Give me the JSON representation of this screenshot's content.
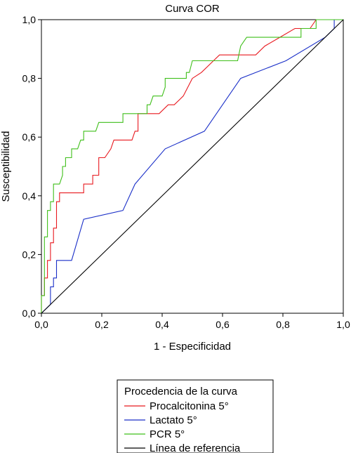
{
  "chart_data": {
    "type": "line",
    "title": "Curva COR",
    "xlabel": "1 - Especificidad",
    "ylabel": "Susceptibilidad",
    "xlim": [
      0,
      1
    ],
    "ylim": [
      0,
      1
    ],
    "x_ticks": [
      "0,0",
      "0,2",
      "0,4",
      "0,6",
      "0,8",
      "1,0"
    ],
    "y_ticks": [
      "0,0",
      "0,2",
      "0,4",
      "0,6",
      "0,8",
      "1,0"
    ],
    "legend": {
      "title": "Procedencia de la curva",
      "placement": "bottom-center"
    },
    "series": [
      {
        "name": "Procalcitonina 5°",
        "color": "#e8191f",
        "points": [
          [
            0,
            0
          ],
          [
            0,
            0.06
          ],
          [
            0.01,
            0.06
          ],
          [
            0.01,
            0.12
          ],
          [
            0.02,
            0.12
          ],
          [
            0.02,
            0.18
          ],
          [
            0.03,
            0.18
          ],
          [
            0.03,
            0.24
          ],
          [
            0.04,
            0.24
          ],
          [
            0.04,
            0.29
          ],
          [
            0.05,
            0.29
          ],
          [
            0.05,
            0.38
          ],
          [
            0.06,
            0.38
          ],
          [
            0.06,
            0.41
          ],
          [
            0.14,
            0.41
          ],
          [
            0.14,
            0.44
          ],
          [
            0.17,
            0.44
          ],
          [
            0.17,
            0.47
          ],
          [
            0.19,
            0.47
          ],
          [
            0.19,
            0.53
          ],
          [
            0.21,
            0.53
          ],
          [
            0.23,
            0.56
          ],
          [
            0.24,
            0.59
          ],
          [
            0.3,
            0.59
          ],
          [
            0.31,
            0.62
          ],
          [
            0.32,
            0.62
          ],
          [
            0.32,
            0.68
          ],
          [
            0.39,
            0.68
          ],
          [
            0.42,
            0.71
          ],
          [
            0.44,
            0.71
          ],
          [
            0.47,
            0.74
          ],
          [
            0.5,
            0.8
          ],
          [
            0.53,
            0.82
          ],
          [
            0.57,
            0.86
          ],
          [
            0.59,
            0.88
          ],
          [
            0.71,
            0.88
          ],
          [
            0.74,
            0.91
          ],
          [
            0.79,
            0.94
          ],
          [
            0.84,
            0.97
          ],
          [
            0.89,
            0.97
          ],
          [
            0.91,
            1.0
          ],
          [
            1.0,
            1.0
          ]
        ]
      },
      {
        "name": "Lactato 5°",
        "color": "#1a2fc8",
        "points": [
          [
            0,
            0
          ],
          [
            0.03,
            0.03
          ],
          [
            0.03,
            0.09
          ],
          [
            0.04,
            0.09
          ],
          [
            0.04,
            0.12
          ],
          [
            0.05,
            0.12
          ],
          [
            0.05,
            0.18
          ],
          [
            0.1,
            0.18
          ],
          [
            0.14,
            0.32
          ],
          [
            0.27,
            0.35
          ],
          [
            0.31,
            0.44
          ],
          [
            0.41,
            0.56
          ],
          [
            0.54,
            0.62
          ],
          [
            0.66,
            0.8
          ],
          [
            0.81,
            0.86
          ],
          [
            0.94,
            0.94
          ],
          [
            0.97,
            0.97
          ],
          [
            0.97,
            1.0
          ],
          [
            1.0,
            1.0
          ]
        ]
      },
      {
        "name": "PCR 5°",
        "color": "#3fbf1a",
        "points": [
          [
            0,
            0
          ],
          [
            0,
            0.06
          ],
          [
            0.01,
            0.06
          ],
          [
            0.01,
            0.26
          ],
          [
            0.02,
            0.26
          ],
          [
            0.02,
            0.35
          ],
          [
            0.03,
            0.35
          ],
          [
            0.03,
            0.38
          ],
          [
            0.04,
            0.38
          ],
          [
            0.04,
            0.44
          ],
          [
            0.06,
            0.44
          ],
          [
            0.07,
            0.47
          ],
          [
            0.07,
            0.5
          ],
          [
            0.08,
            0.5
          ],
          [
            0.08,
            0.53
          ],
          [
            0.1,
            0.53
          ],
          [
            0.1,
            0.56
          ],
          [
            0.12,
            0.56
          ],
          [
            0.13,
            0.59
          ],
          [
            0.14,
            0.59
          ],
          [
            0.14,
            0.62
          ],
          [
            0.18,
            0.62
          ],
          [
            0.19,
            0.65
          ],
          [
            0.27,
            0.65
          ],
          [
            0.27,
            0.68
          ],
          [
            0.35,
            0.68
          ],
          [
            0.35,
            0.71
          ],
          [
            0.36,
            0.71
          ],
          [
            0.37,
            0.74
          ],
          [
            0.4,
            0.74
          ],
          [
            0.41,
            0.77
          ],
          [
            0.41,
            0.8
          ],
          [
            0.48,
            0.8
          ],
          [
            0.48,
            0.82
          ],
          [
            0.49,
            0.82
          ],
          [
            0.5,
            0.86
          ],
          [
            0.65,
            0.86
          ],
          [
            0.66,
            0.91
          ],
          [
            0.68,
            0.94
          ],
          [
            0.86,
            0.94
          ],
          [
            0.86,
            0.97
          ],
          [
            0.91,
            0.97
          ],
          [
            0.91,
            1.0
          ],
          [
            1.0,
            1.0
          ]
        ]
      },
      {
        "name": "Línea de referencia",
        "color": "#000000",
        "points": [
          [
            0,
            0
          ],
          [
            1,
            1
          ]
        ]
      }
    ]
  }
}
